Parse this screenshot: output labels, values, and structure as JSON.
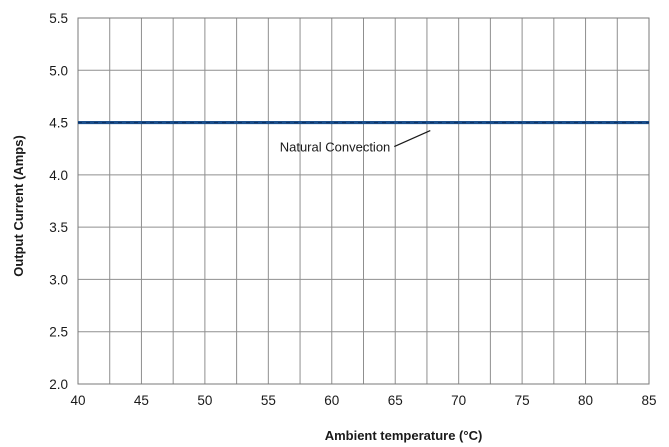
{
  "chart_data": {
    "type": "line",
    "title": "",
    "xlabel": "Ambient temperature (°C)",
    "ylabel": "Output Current (Amps)",
    "xlim": [
      40,
      85
    ],
    "ylim": [
      2.0,
      5.5
    ],
    "xticks": [
      40,
      45,
      50,
      55,
      60,
      65,
      70,
      75,
      80,
      85
    ],
    "xtick_labels": [
      "40",
      "45",
      "50",
      "55",
      "60",
      "65",
      "70",
      "75",
      "80",
      "85"
    ],
    "yticks": [
      2.0,
      2.5,
      3.0,
      3.5,
      4.0,
      4.5,
      5.0,
      5.5
    ],
    "ytick_labels": [
      "2.0",
      "2.5",
      "3.0",
      "3.5",
      "4.0",
      "4.5",
      "5.0",
      "5.5"
    ],
    "grid": true,
    "x_minor_step": 2.5,
    "series": [
      {
        "x": [
          40,
          85
        ],
        "values": [
          4.5,
          4.5
        ],
        "color": "#1b4f8c"
      }
    ],
    "annotations": [
      {
        "text": "Natural Convection",
        "point_x": 68,
        "point_y": 4.5
      }
    ]
  }
}
